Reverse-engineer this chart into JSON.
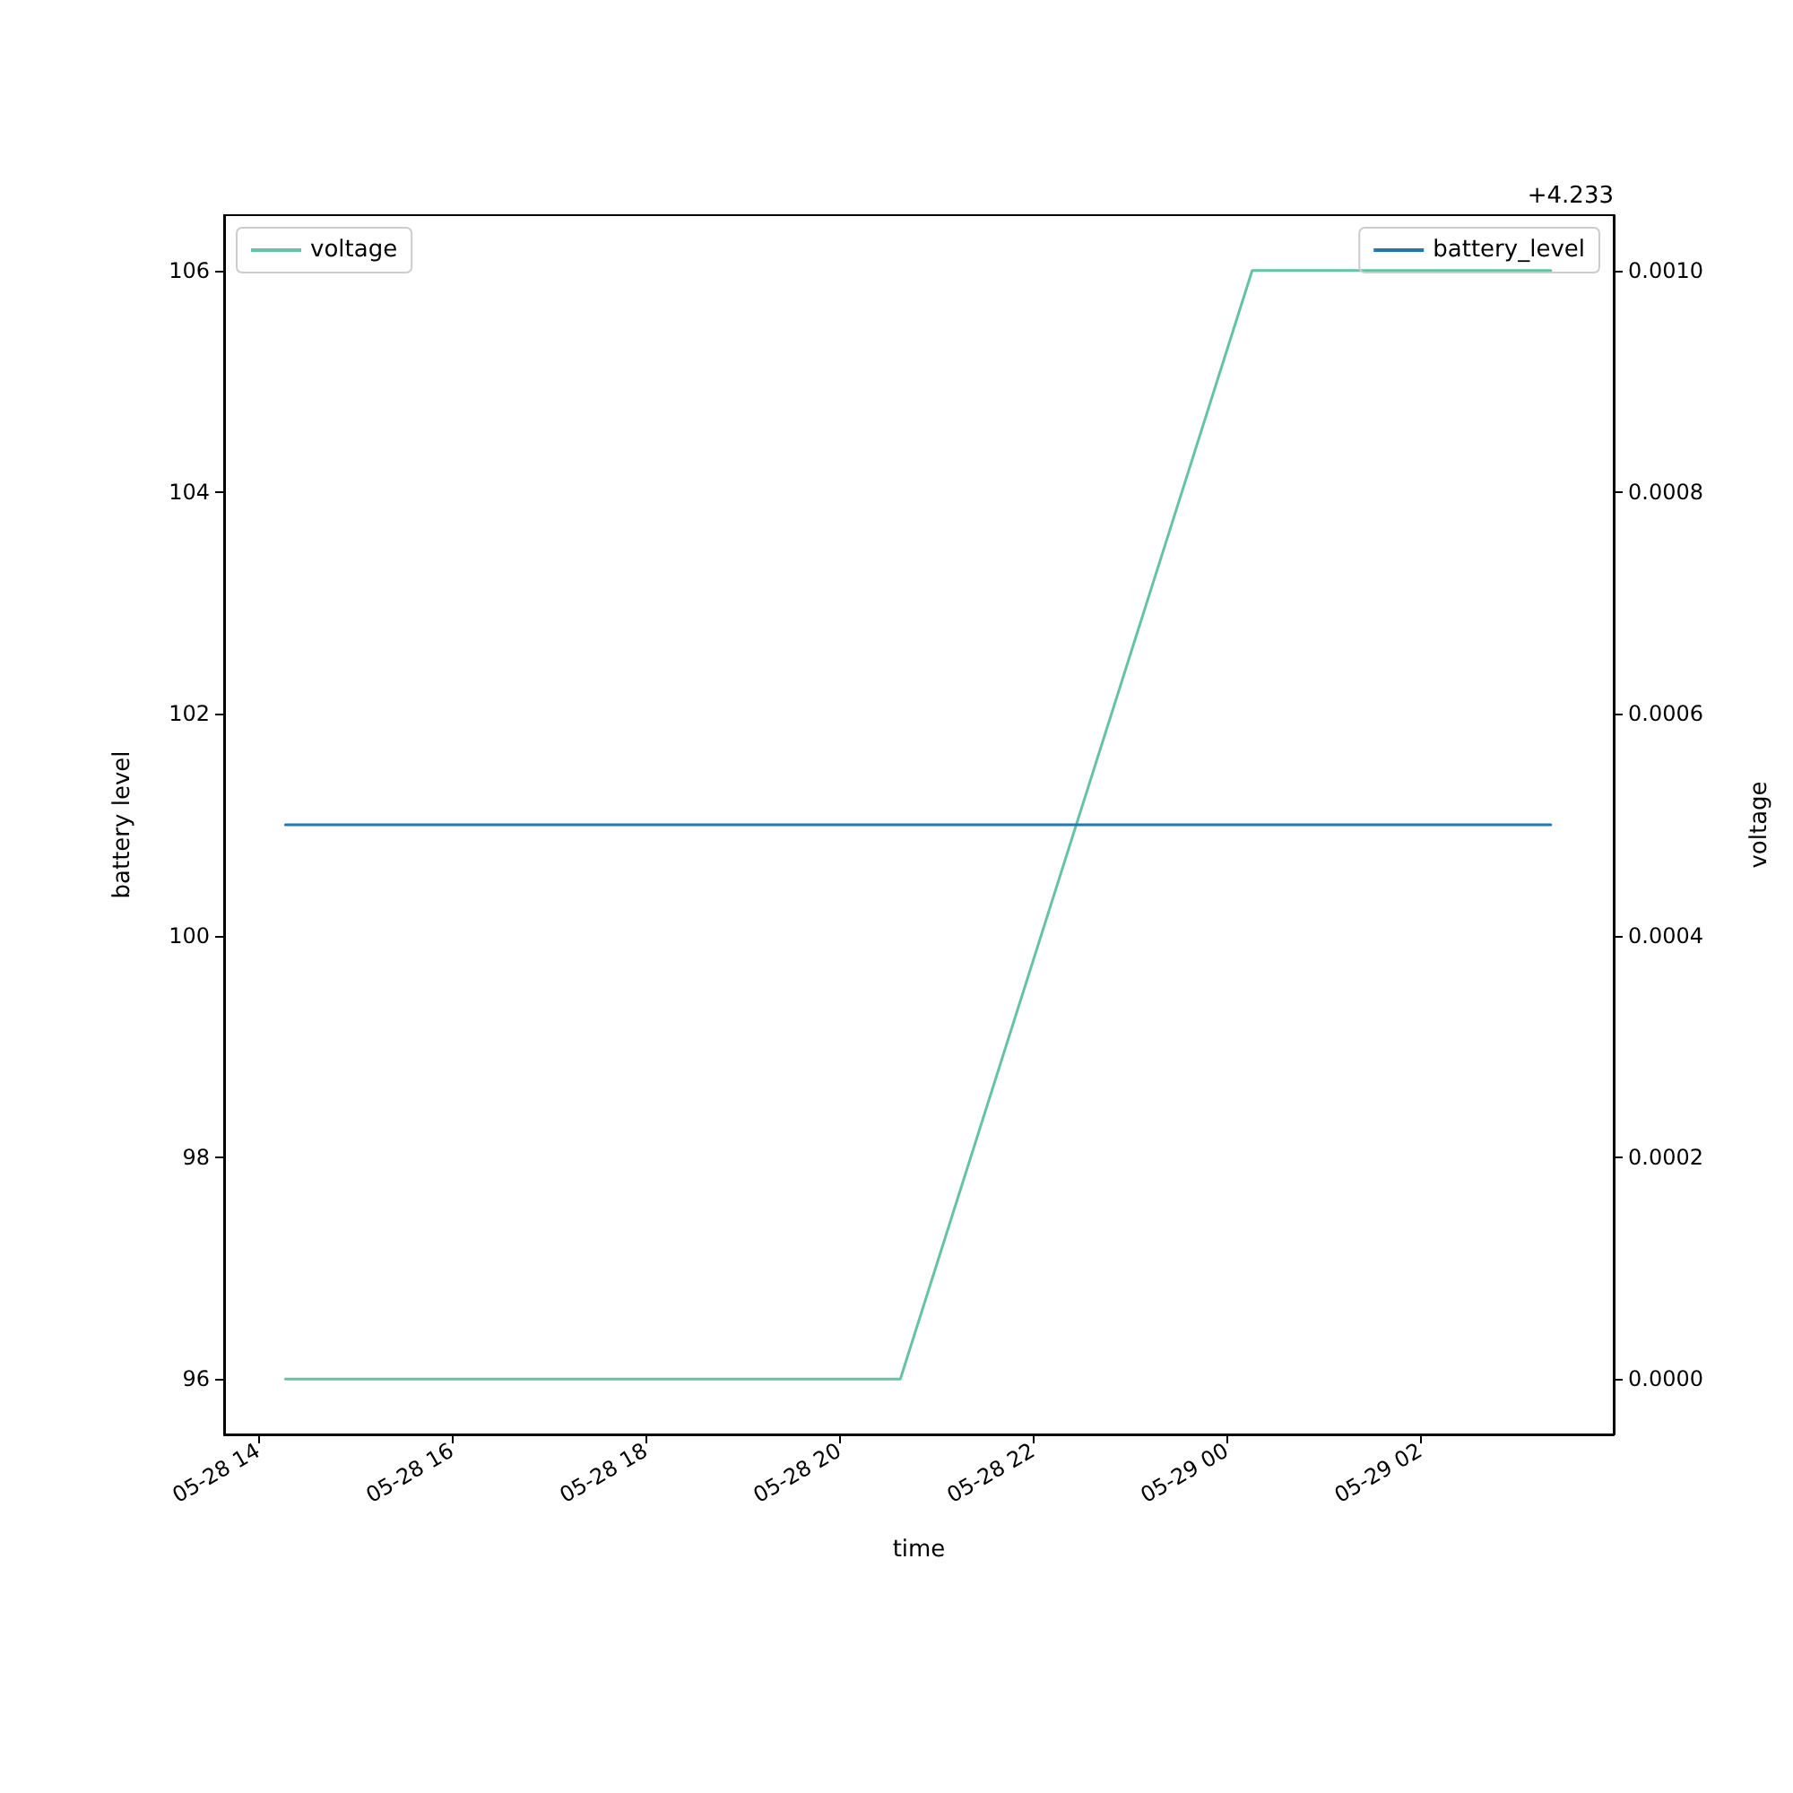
{
  "chart_data": {
    "type": "line",
    "xlabel": "time",
    "ylabel": "battery level",
    "y2label": "voltage",
    "annotations": [
      "+4.233"
    ],
    "xlim": [
      "--05-28T13:39",
      "--05-29T04:00"
    ],
    "xticks": [
      {
        "value": "--05-28T14:00",
        "label": "05-28 14"
      },
      {
        "value": "--05-28T16:00",
        "label": "05-28 16"
      },
      {
        "value": "--05-28T18:00",
        "label": "05-28 18"
      },
      {
        "value": "--05-28T20:00",
        "label": "05-28 20"
      },
      {
        "value": "--05-28T22:00",
        "label": "05-28 22"
      },
      {
        "value": "--05-29T00:00",
        "label": "05-29 00"
      },
      {
        "value": "--05-29T02:00",
        "label": "05-29 02"
      }
    ],
    "ylim": [
      95.5,
      106.5
    ],
    "yticks": [
      96,
      98,
      100,
      102,
      104,
      106
    ],
    "y2lim": [
      -5e-05,
      0.00105
    ],
    "y2ticks": [
      {
        "value": 0,
        "label": "0.0000"
      },
      {
        "value": 0.0002,
        "label": "0.0002"
      },
      {
        "value": 0.0004,
        "label": "0.0004"
      },
      {
        "value": 0.0006,
        "label": "0.0006"
      },
      {
        "value": 0.0008,
        "label": "0.0008"
      },
      {
        "value": 0.001,
        "label": "0.0010"
      }
    ],
    "series": [
      {
        "name": "voltage",
        "color": "#66c2a5",
        "axis": "y2",
        "x": [
          "--05-28T14:17",
          "--05-28T20:38",
          "--05-29T00:16",
          "--05-29T03:21"
        ],
        "values": [
          0,
          0,
          0.001,
          0.001
        ]
      },
      {
        "name": "battery_level",
        "color": "#1f77b4",
        "axis": "y",
        "x": [
          "--05-28T14:17",
          "--05-29T03:21"
        ],
        "values": [
          101,
          101
        ]
      }
    ],
    "legend": "top left",
    "grid": false,
    "marker": "none",
    "line_style": "solid"
  }
}
